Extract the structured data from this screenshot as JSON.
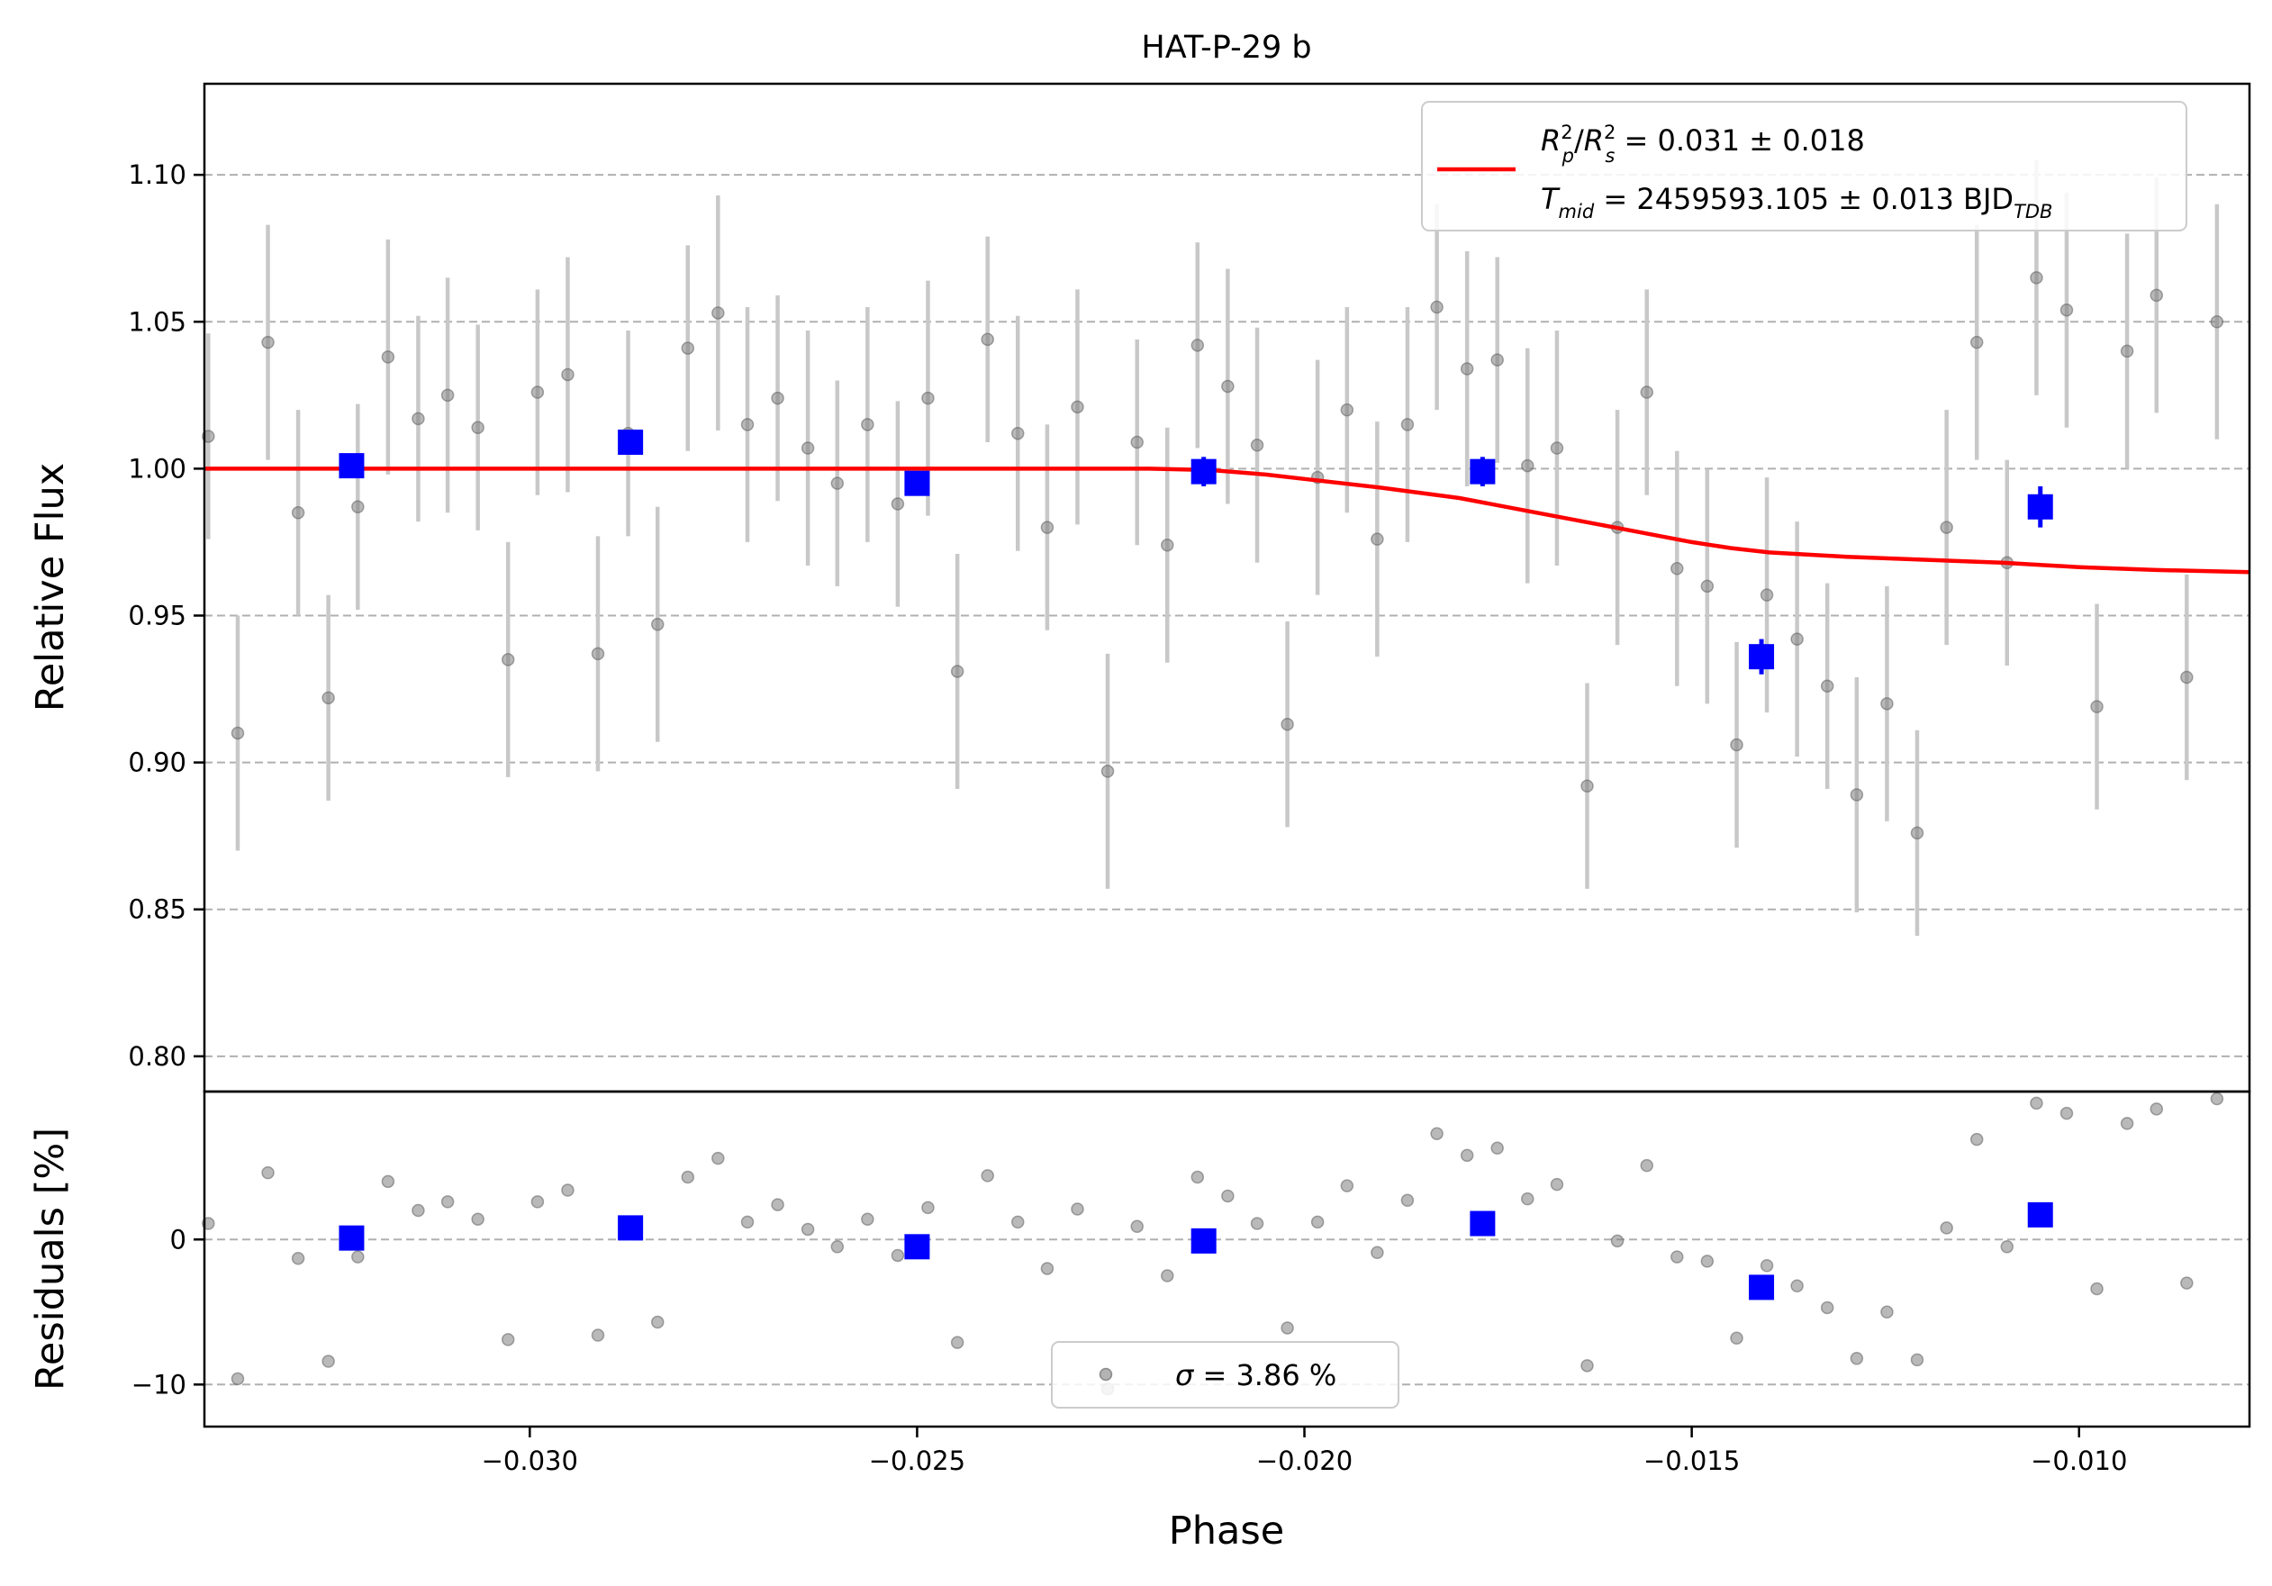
{
  "chart_data": {
    "type": "scatter",
    "title": "HAT-P-29 b",
    "xlabel": "Phase",
    "xlim": [
      -0.0342,
      -0.0078
    ],
    "x_ticks": [
      -0.03,
      -0.025,
      -0.02,
      -0.015,
      -0.01
    ],
    "x_tick_labels": [
      "−0.030",
      "−0.025",
      "−0.020",
      "−0.015",
      "−0.010"
    ],
    "grid": "horizontal dashed",
    "top_panel": {
      "ylabel": "Relative Flux",
      "ylim": [
        0.788,
        1.131
      ],
      "y_ticks": [
        0.8,
        0.85,
        0.9,
        0.95,
        1.0,
        1.05,
        1.1
      ],
      "y_tick_labels": [
        "0.80",
        "0.85",
        "0.90",
        "0.95",
        "1.00",
        "1.05",
        "1.10"
      ],
      "legend": {
        "placement": "top-right",
        "line1": {
          "symbol": "R",
          "sub1": "p",
          "sup1": "2",
          "slash": "/",
          "symbol2": "R",
          "sub2": "s",
          "sup2": "2",
          "value": " = 0.031 ± 0.018"
        },
        "line2": {
          "symbol": "T",
          "sub": "mid",
          "value": " = 2459593.105 ± 0.013 BJD",
          "suffix_sub": "TDB"
        }
      },
      "model_series": {
        "color": "#ff0000",
        "x": [
          -0.0342,
          -0.022,
          -0.0212,
          -0.0205,
          -0.02,
          -0.019,
          -0.018,
          -0.017,
          -0.016,
          -0.015,
          -0.0145,
          -0.014,
          -0.013,
          -0.012,
          -0.011,
          -0.01,
          -0.009,
          -0.0078
        ],
        "y": [
          1.0,
          1.0,
          0.9995,
          0.998,
          0.9965,
          0.9935,
          0.99,
          0.985,
          0.98,
          0.975,
          0.973,
          0.9715,
          0.97,
          0.969,
          0.968,
          0.9665,
          0.9655,
          0.9648
        ]
      },
      "binned_points": {
        "color": "#0000ff",
        "x": [
          -0.0323,
          -0.0287,
          -0.025,
          -0.0213,
          -0.0177,
          -0.0141,
          -0.0105
        ],
        "y": [
          1.001,
          1.009,
          0.995,
          0.999,
          0.999,
          0.936,
          0.987
        ],
        "err": [
          0.004,
          0.003,
          0.004,
          0.005,
          0.005,
          0.006,
          0.007
        ]
      },
      "raw_points": {
        "color": "#808080",
        "x": [
          -0.03415,
          -0.03377,
          -0.03338,
          -0.03299,
          -0.0326,
          -0.03222,
          -0.03183,
          -0.03144,
          -0.03106,
          -0.03067,
          -0.03028,
          -0.0299,
          -0.02951,
          -0.02912,
          -0.02873,
          -0.02835,
          -0.02796,
          -0.02757,
          -0.02719,
          -0.0268,
          -0.02641,
          -0.02603,
          -0.02564,
          -0.02525,
          -0.02486,
          -0.02448,
          -0.02409,
          -0.0237,
          -0.02332,
          -0.02293,
          -0.02254,
          -0.02216,
          -0.02177,
          -0.02138,
          -0.02099,
          -0.02061,
          -0.02022,
          -0.01983,
          -0.01945,
          -0.01906,
          -0.01867,
          -0.01829,
          -0.0179,
          -0.01751,
          -0.01712,
          -0.01674,
          -0.01635,
          -0.01596,
          -0.01558,
          -0.01519,
          -0.0148,
          -0.01442,
          -0.01403,
          -0.01364,
          -0.01325,
          -0.01287,
          -0.01248,
          -0.01209,
          -0.01171,
          -0.01132,
          -0.01093,
          -0.01055,
          -0.01016,
          -0.00977,
          -0.00938,
          -0.009,
          -0.00861,
          -0.00822
        ],
        "y": [
          1.011,
          0.91,
          1.043,
          0.985,
          0.922,
          0.987,
          1.038,
          1.017,
          1.025,
          1.014,
          0.935,
          1.026,
          1.032,
          0.937,
          1.012,
          0.947,
          1.041,
          1.053,
          1.015,
          1.024,
          1.007,
          0.995,
          1.015,
          0.988,
          1.024,
          0.931,
          1.044,
          1.012,
          0.98,
          1.021,
          0.897,
          1.009,
          0.974,
          1.042,
          1.028,
          1.008,
          0.913,
          0.997,
          1.02,
          0.976,
          1.015,
          1.055,
          1.034,
          1.037,
          1.001,
          1.007,
          0.892,
          0.98,
          1.026,
          0.966,
          0.96,
          0.906,
          0.957,
          0.942,
          0.926,
          0.889,
          0.92,
          0.876,
          0.98,
          1.043,
          0.968,
          1.065,
          1.054,
          0.919,
          1.04,
          1.059,
          0.929,
          1.05
        ],
        "err": [
          0.035,
          0.04,
          0.04,
          0.035,
          0.035,
          0.035,
          0.04,
          0.035,
          0.04,
          0.035,
          0.04,
          0.035,
          0.04,
          0.04,
          0.035,
          0.04,
          0.035,
          0.04,
          0.04,
          0.035,
          0.04,
          0.035,
          0.04,
          0.035,
          0.04,
          0.04,
          0.035,
          0.04,
          0.035,
          0.04,
          0.04,
          0.035,
          0.04,
          0.035,
          0.04,
          0.04,
          0.035,
          0.04,
          0.035,
          0.04,
          0.04,
          0.035,
          0.04,
          0.035,
          0.04,
          0.04,
          0.035,
          0.04,
          0.035,
          0.04,
          0.04,
          0.035,
          0.04,
          0.04,
          0.035,
          0.04,
          0.04,
          0.035,
          0.04,
          0.04,
          0.035,
          0.04,
          0.04,
          0.035,
          0.04,
          0.04,
          0.035,
          0.04
        ]
      }
    },
    "bottom_panel": {
      "ylabel": "Residuals [%]",
      "ylim": [
        -12.9,
        10.2
      ],
      "y_ticks": [
        0,
        -10
      ],
      "y_tick_labels": [
        "0",
        "−10"
      ],
      "legend": {
        "placement": "bottom-center",
        "symbol": "σ",
        "value": " = 3.86 %"
      },
      "binned_points": {
        "color": "#0000ff",
        "x": [
          -0.0323,
          -0.0287,
          -0.025,
          -0.0213,
          -0.0177,
          -0.0141,
          -0.0105
        ],
        "y": [
          0.1,
          0.8,
          -0.5,
          -0.1,
          1.1,
          -3.3,
          1.7
        ]
      },
      "raw_points": {
        "color": "#808080",
        "x": [
          -0.03415,
          -0.03377,
          -0.03338,
          -0.03299,
          -0.0326,
          -0.03222,
          -0.03183,
          -0.03144,
          -0.03106,
          -0.03067,
          -0.03028,
          -0.0299,
          -0.02951,
          -0.02912,
          -0.02873,
          -0.02835,
          -0.02796,
          -0.02757,
          -0.02719,
          -0.0268,
          -0.02641,
          -0.02603,
          -0.02564,
          -0.02525,
          -0.02486,
          -0.02448,
          -0.02409,
          -0.0237,
          -0.02332,
          -0.02293,
          -0.02254,
          -0.02216,
          -0.02177,
          -0.02138,
          -0.02099,
          -0.02061,
          -0.02022,
          -0.01983,
          -0.01945,
          -0.01906,
          -0.01867,
          -0.01829,
          -0.0179,
          -0.01751,
          -0.01712,
          -0.01674,
          -0.01635,
          -0.01596,
          -0.01558,
          -0.01519,
          -0.0148,
          -0.01442,
          -0.01403,
          -0.01364,
          -0.01325,
          -0.01287,
          -0.01248,
          -0.01209,
          -0.01171,
          -0.01132,
          -0.01093,
          -0.01055,
          -0.01016,
          -0.00977,
          -0.00938,
          -0.009,
          -0.00861,
          -0.00822
        ],
        "y": [
          1.1,
          -9.6,
          4.6,
          -1.3,
          -8.4,
          -1.2,
          4.0,
          2.0,
          2.6,
          1.4,
          -6.9,
          2.6,
          3.4,
          -6.6,
          1.1,
          -5.7,
          4.3,
          5.6,
          1.2,
          2.4,
          0.7,
          -0.5,
          1.4,
          -1.1,
          2.2,
          -7.1,
          4.4,
          1.2,
          -2.0,
          2.1,
          -10.3,
          0.9,
          -2.5,
          4.3,
          3.0,
          1.1,
          -6.1,
          1.2,
          3.7,
          -0.9,
          2.7,
          7.3,
          5.8,
          6.3,
          2.8,
          3.8,
          -8.7,
          -0.1,
          5.1,
          -1.2,
          -1.5,
          -6.8,
          -1.8,
          -3.2,
          -4.7,
          -8.2,
          -5.0,
          -8.3,
          0.8,
          6.9,
          -0.5,
          9.4,
          8.7,
          -3.4,
          8.0,
          9.0,
          -3.0,
          9.7
        ]
      }
    }
  }
}
